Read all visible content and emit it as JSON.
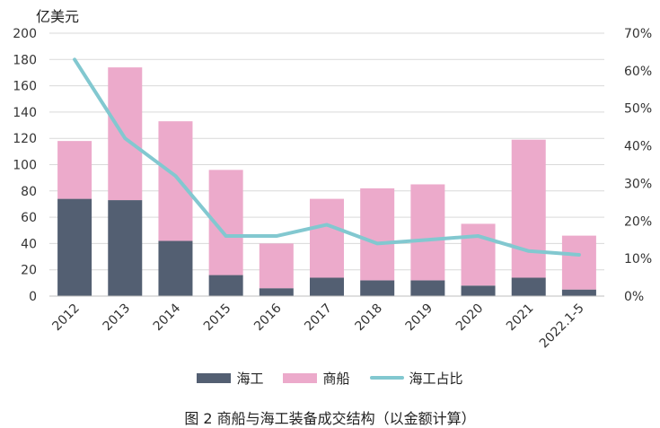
{
  "chart_data": {
    "type": "bar",
    "stacked": true,
    "categories": [
      "2012",
      "2013",
      "2014",
      "2015",
      "2016",
      "2017",
      "2018",
      "2019",
      "2020",
      "2021",
      "2022.1-5"
    ],
    "series": [
      {
        "name": "海工",
        "kind": "bar",
        "axis": "left",
        "color": "#535f72",
        "values": [
          74,
          73,
          42,
          16,
          6,
          14,
          12,
          12,
          8,
          14,
          5
        ]
      },
      {
        "name": "商船",
        "kind": "bar",
        "axis": "left",
        "color": "#ecaacb",
        "values": [
          44,
          101,
          91,
          80,
          34,
          60,
          70,
          73,
          47,
          105,
          41
        ]
      },
      {
        "name": "海工占比",
        "kind": "line",
        "axis": "right",
        "color": "#82c8d0",
        "values": [
          63,
          42,
          32,
          16,
          16,
          19,
          14,
          15,
          16,
          12,
          11
        ]
      }
    ],
    "yleft": {
      "unit_label": "亿美元",
      "min": 0,
      "max": 200,
      "step": 20,
      "ticks": [
        "0",
        "20",
        "40",
        "60",
        "80",
        "100",
        "120",
        "140",
        "160",
        "180",
        "200"
      ]
    },
    "yright": {
      "min": 0,
      "max": 70,
      "step": 10,
      "ticks": [
        "0%",
        "10%",
        "20%",
        "30%",
        "40%",
        "50%",
        "60%",
        "70%"
      ]
    },
    "grid": true,
    "legend_position": "bottom"
  },
  "caption": "图 2 商船与海工装备成交结构（以金额计算）"
}
